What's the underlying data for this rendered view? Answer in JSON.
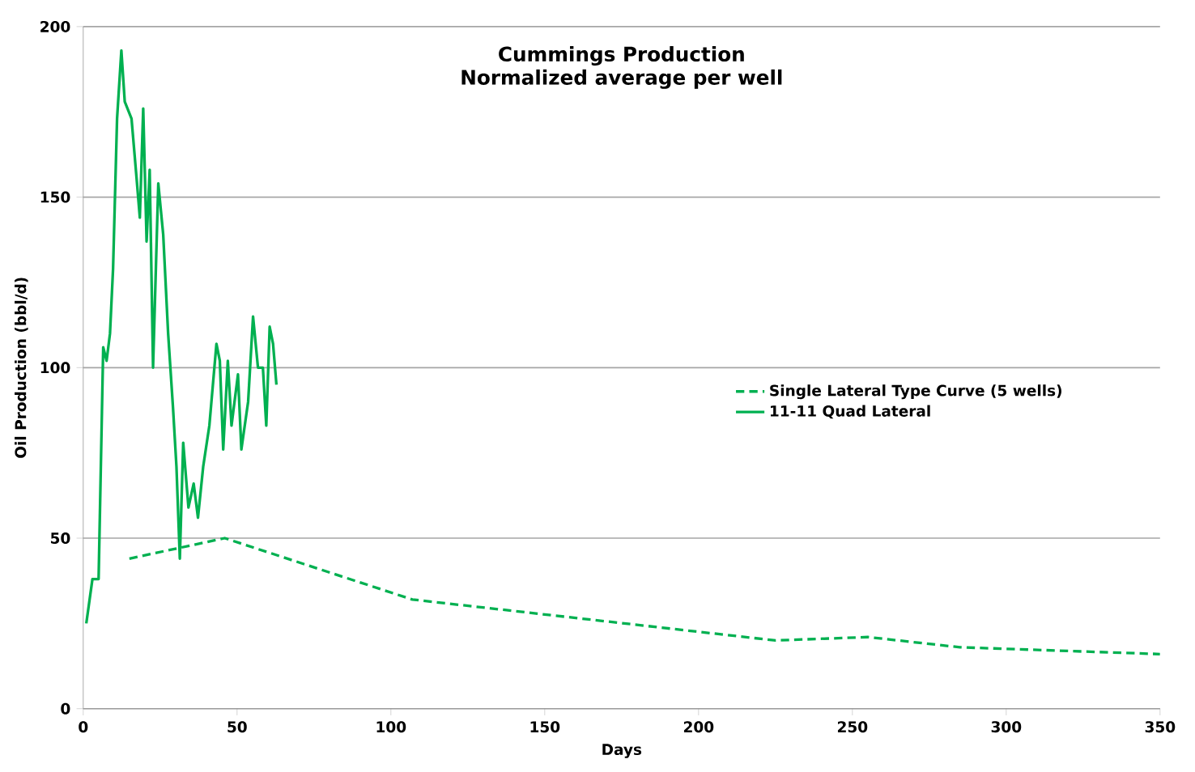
{
  "chart_data": {
    "type": "line",
    "title": "Cummings Production",
    "subtitle": "Normalized average per well",
    "xlabel": "Days",
    "ylabel": "Oil Production (bbl/d)",
    "xlim": [
      0,
      350
    ],
    "xticks": [
      0,
      50,
      100,
      150,
      200,
      250,
      300,
      350
    ],
    "ylim": [
      0,
      200
    ],
    "yticks": [
      0,
      50,
      100,
      150,
      200
    ],
    "grid": "y",
    "legend": "right",
    "series": [
      {
        "name": "Single Lateral Type Curve (5 wells)",
        "color": "#00b050",
        "line_style": "dashed",
        "x": [
          15,
          46,
          107,
          225,
          255,
          285,
          350
        ],
        "values": [
          44,
          50,
          32,
          20,
          21,
          18,
          16
        ]
      },
      {
        "name": "11-11 Quad Lateral",
        "color": "#00b050",
        "line_style": "solid",
        "x": [
          1,
          3,
          5,
          6.5,
          7.6,
          8.7,
          9.7,
          11,
          12.4,
          13.5,
          15.7,
          17.3,
          18.4,
          19.5,
          20.6,
          21.6,
          22.7,
          24.4,
          26,
          27.6,
          29.2,
          30.3,
          31.4,
          32.5,
          34.2,
          35.9,
          37.3,
          39,
          41,
          43.3,
          44.4,
          45.5,
          47,
          48.2,
          50.3,
          51.4,
          53.6,
          55.2,
          56.8,
          58.4,
          59.5,
          60.6,
          61.7,
          62.8
        ],
        "values": [
          25,
          38,
          38,
          106,
          102,
          110,
          129,
          173,
          193,
          178,
          173,
          156,
          144,
          176,
          137,
          158,
          100,
          154,
          139,
          110,
          88,
          71,
          44,
          78,
          59,
          66,
          56,
          71,
          83,
          107,
          102,
          76,
          102,
          83,
          98,
          76,
          90,
          115,
          100,
          100,
          83,
          112,
          107,
          95
        ]
      }
    ]
  }
}
